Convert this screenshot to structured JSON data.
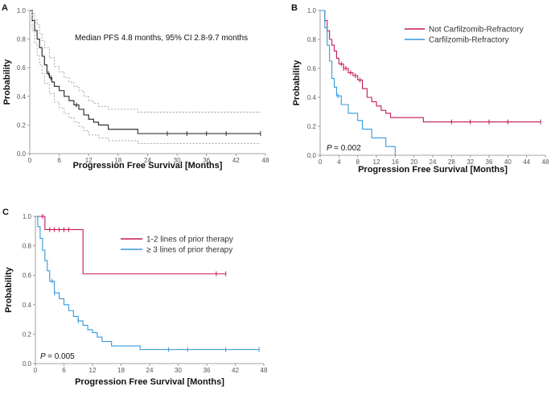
{
  "chart_data": [
    {
      "panel": "A",
      "type": "line",
      "step": true,
      "xlabel": "Progression Free Survival [Months]",
      "ylabel": "Probability",
      "xlim": [
        0,
        48
      ],
      "ylim": [
        0,
        1
      ],
      "xticks": [
        "0",
        "6",
        "12",
        "18",
        "24",
        "30",
        "36",
        "42",
        "48"
      ],
      "yticks": [
        "0.0",
        "0.2",
        "0.4",
        "0.6",
        "0.8",
        "1.0"
      ],
      "annotation": "Median PFS 4.8 months, 95% CI 2.8-9.7 months",
      "grid": false,
      "colors": {
        "main": "#333333",
        "ci": "#999999"
      },
      "series": [
        {
          "role": "estimate",
          "x": [
            0,
            0.5,
            1,
            1.5,
            2,
            2.5,
            3,
            3.5,
            4,
            4.5,
            5,
            6,
            7,
            8,
            9,
            10,
            11,
            12,
            13,
            14,
            16,
            22,
            47
          ],
          "y": [
            1.0,
            0.93,
            0.86,
            0.8,
            0.74,
            0.68,
            0.62,
            0.56,
            0.53,
            0.5,
            0.47,
            0.44,
            0.4,
            0.37,
            0.34,
            0.31,
            0.27,
            0.24,
            0.22,
            0.2,
            0.17,
            0.14,
            0.14
          ],
          "censor_x": [
            3.8,
            4.3,
            9.5,
            28,
            32,
            36,
            40,
            47
          ]
        },
        {
          "role": "upper-ci",
          "x": [
            0,
            0.5,
            1,
            1.5,
            2,
            2.5,
            3,
            4,
            5,
            6,
            7,
            8,
            9,
            10,
            11,
            12,
            13,
            14,
            16,
            22,
            47
          ],
          "y": [
            1.0,
            0.98,
            0.94,
            0.9,
            0.84,
            0.79,
            0.74,
            0.67,
            0.61,
            0.57,
            0.53,
            0.5,
            0.47,
            0.44,
            0.4,
            0.37,
            0.35,
            0.33,
            0.31,
            0.29,
            0.29
          ]
        },
        {
          "role": "lower-ci",
          "x": [
            0,
            0.5,
            1,
            1.5,
            2,
            2.5,
            3,
            4,
            5,
            6,
            7,
            8,
            9,
            10,
            11,
            12,
            14,
            16,
            22,
            47
          ],
          "y": [
            1.0,
            0.86,
            0.77,
            0.69,
            0.62,
            0.56,
            0.49,
            0.42,
            0.36,
            0.32,
            0.28,
            0.25,
            0.22,
            0.19,
            0.16,
            0.13,
            0.11,
            0.09,
            0.07,
            0.07
          ]
        }
      ]
    },
    {
      "panel": "B",
      "type": "line",
      "step": true,
      "xlabel": "Progression Free Survival [Months]",
      "ylabel": "Probability",
      "xlim": [
        0,
        48
      ],
      "ylim": [
        0,
        1
      ],
      "xticks": [
        "0",
        "4",
        "8",
        "12",
        "16",
        "20",
        "24",
        "28",
        "32",
        "36",
        "40",
        "44",
        "48"
      ],
      "yticks": [
        "0.0",
        "0.2",
        "0.4",
        "0.6",
        "0.8",
        "1.0"
      ],
      "annotation": "= 0.002",
      "annotation_italic": "P",
      "legend_position": "top-right",
      "grid": false,
      "series": [
        {
          "name": "Not Carfilzomib-Refractory",
          "color": "#c2185b",
          "x": [
            0,
            1,
            1.5,
            2,
            2.5,
            3,
            3.5,
            4,
            5,
            6,
            7,
            8,
            9,
            10,
            11,
            12,
            13,
            14,
            15,
            22,
            47
          ],
          "y": [
            1.0,
            0.93,
            0.86,
            0.8,
            0.76,
            0.72,
            0.67,
            0.63,
            0.6,
            0.57,
            0.55,
            0.52,
            0.46,
            0.4,
            0.37,
            0.34,
            0.31,
            0.29,
            0.26,
            0.23,
            0.23
          ],
          "censor_x": [
            4.5,
            5,
            5.5,
            6.5,
            7.5,
            8.5,
            28,
            32,
            36,
            40,
            47
          ]
        },
        {
          "name": "Carfilzomib-Refractory",
          "color": "#3399dd",
          "x": [
            0,
            1,
            1.5,
            2,
            2.5,
            3,
            3.5,
            4.5,
            6,
            8,
            9,
            11,
            14,
            16
          ],
          "y": [
            1.0,
            0.88,
            0.76,
            0.65,
            0.53,
            0.47,
            0.41,
            0.35,
            0.29,
            0.24,
            0.18,
            0.12,
            0.06,
            0.0
          ],
          "censor_x": [
            3.8
          ]
        }
      ]
    },
    {
      "panel": "C",
      "type": "line",
      "step": true,
      "xlabel": "Progression Free Survival [Months]",
      "ylabel": "Probability",
      "xlim": [
        0,
        48
      ],
      "ylim": [
        0,
        1
      ],
      "xticks": [
        "0",
        "6",
        "12",
        "18",
        "24",
        "30",
        "36",
        "42",
        "48"
      ],
      "yticks": [
        "0.0",
        "0.2",
        "0.4",
        "0.6",
        "0.8",
        "1.0"
      ],
      "annotation": "= 0.005",
      "annotation_italic": "P",
      "legend_position": "top-right",
      "grid": false,
      "series": [
        {
          "name": "1-2 lines of prior therapy",
          "color": "#c2185b",
          "x": [
            0,
            2,
            10,
            40
          ],
          "y": [
            1.0,
            0.91,
            0.61,
            0.61
          ],
          "censor_x": [
            1.5,
            3,
            4,
            5,
            6,
            7,
            38,
            40
          ]
        },
        {
          "name": "≥ 3 lines of prior therapy",
          "color": "#3399dd",
          "x": [
            0,
            0.5,
            1,
            1.5,
            2,
            2.5,
            3,
            4,
            5,
            6,
            7,
            8,
            9,
            10,
            11,
            12,
            13,
            14,
            16,
            22,
            47
          ],
          "y": [
            1.0,
            0.93,
            0.85,
            0.77,
            0.7,
            0.63,
            0.56,
            0.48,
            0.44,
            0.4,
            0.36,
            0.32,
            0.29,
            0.26,
            0.23,
            0.21,
            0.18,
            0.15,
            0.12,
            0.095,
            0.095
          ],
          "censor_x": [
            3.5,
            4,
            9,
            28,
            32,
            40,
            47
          ]
        }
      ]
    }
  ]
}
